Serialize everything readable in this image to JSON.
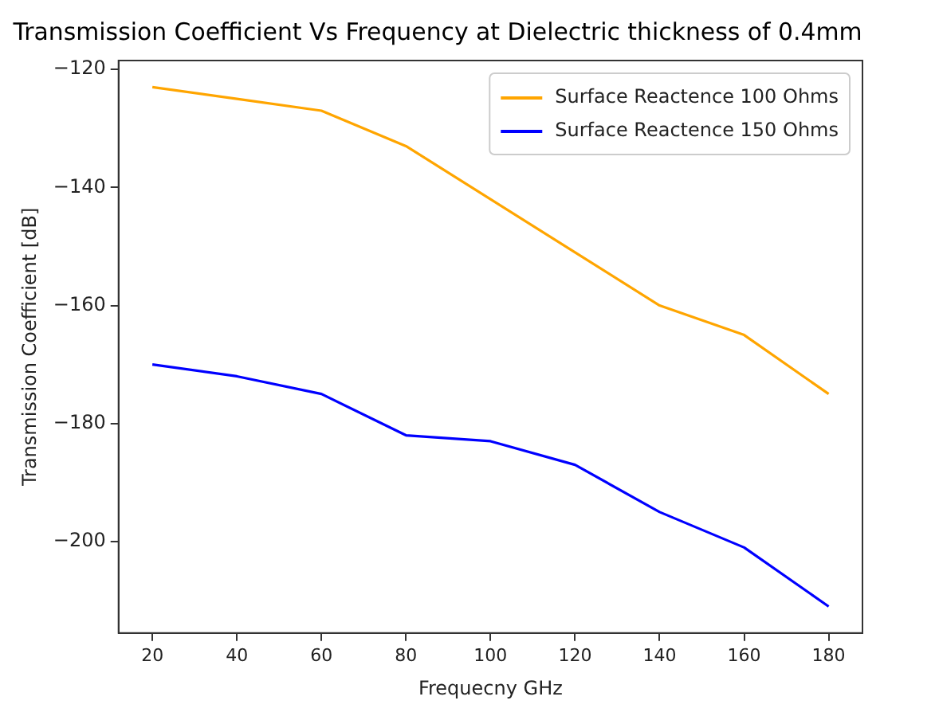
{
  "chart_data": {
    "type": "line",
    "title": "Transmission Coefficient Vs Frequency at Dielectric thickness of 0.4mm",
    "xlabel": "Frequecny GHz",
    "ylabel": "Transmission Coefficient [dB]",
    "x": [
      20,
      40,
      60,
      80,
      100,
      120,
      140,
      160,
      180
    ],
    "series": [
      {
        "name": "Surface Reactence 100 Ohms",
        "color": "#ffa500",
        "values": [
          -123,
          -125,
          -127,
          -133,
          -142,
          -151,
          -160,
          -165,
          -175
        ]
      },
      {
        "name": "Surface Reactence 150 Ohms",
        "color": "#0000ff",
        "values": [
          -170,
          -172,
          -175,
          -182,
          -183,
          -187,
          -195,
          -201,
          -211
        ]
      }
    ],
    "xlim": [
      12,
      188
    ],
    "xticks": [
      20,
      40,
      60,
      80,
      100,
      120,
      140,
      160,
      180
    ],
    "ylim": [
      -215.5,
      -118.5
    ],
    "yticks": [
      -200,
      -180,
      -160,
      -140,
      -120
    ],
    "legend": "top right",
    "marker": "none",
    "line_style": "solid"
  }
}
